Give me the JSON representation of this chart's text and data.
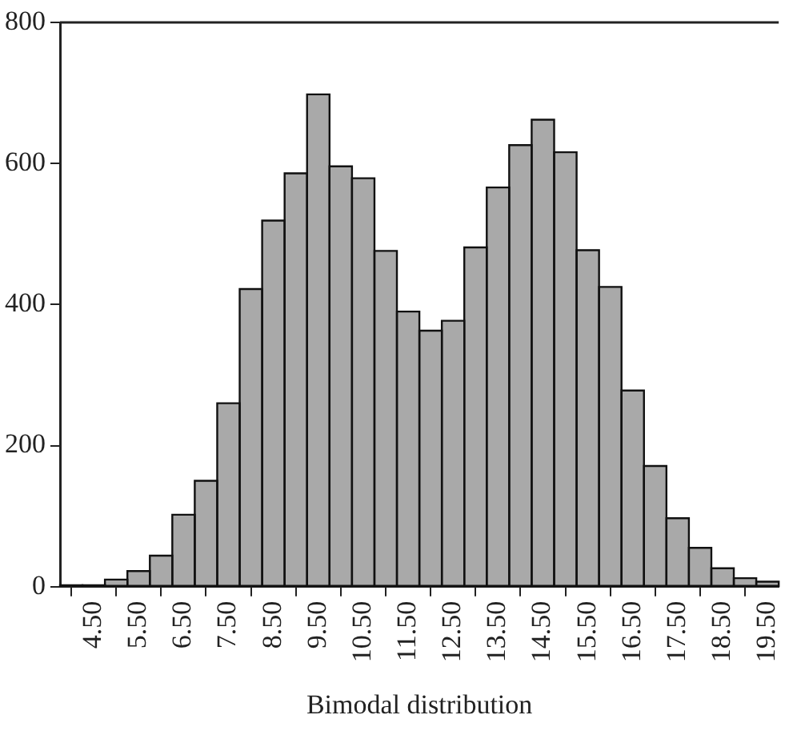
{
  "chart_data": {
    "type": "histogram",
    "xlabel": "Bimodal distribution",
    "bins": [
      3.75,
      4.25,
      4.75,
      5.25,
      5.75,
      6.25,
      6.75,
      7.25,
      7.75,
      8.25,
      8.75,
      9.25,
      9.75,
      10.25,
      10.75,
      11.25,
      11.75,
      12.25,
      12.75,
      13.25,
      13.75,
      14.25,
      14.75,
      15.25,
      15.75,
      16.25,
      16.75,
      17.25,
      17.75,
      18.25,
      18.75,
      19.25,
      19.75
    ],
    "values": [
      2,
      2,
      10,
      22,
      44,
      102,
      150,
      260,
      422,
      519,
      586,
      698,
      596,
      579,
      476,
      390,
      363,
      377,
      481,
      566,
      626,
      662,
      616,
      477,
      425,
      278,
      171,
      97,
      55,
      26,
      12,
      7
    ],
    "color": "#a9a9a9",
    "xlim": [
      3.75,
      19.75
    ],
    "xticks": [
      {
        "value": 4.5,
        "label": "4.50"
      },
      {
        "value": 5.5,
        "label": "5.50"
      },
      {
        "value": 6.5,
        "label": "6.50"
      },
      {
        "value": 7.5,
        "label": "7.50"
      },
      {
        "value": 8.5,
        "label": "8.50"
      },
      {
        "value": 9.5,
        "label": "9.50"
      },
      {
        "value": 10.5,
        "label": "10.50"
      },
      {
        "value": 11.5,
        "label": "11.50"
      },
      {
        "value": 12.5,
        "label": "12.50"
      },
      {
        "value": 13.5,
        "label": "13.50"
      },
      {
        "value": 14.5,
        "label": "14.50"
      },
      {
        "value": 15.5,
        "label": "15.50"
      },
      {
        "value": 16.5,
        "label": "16.50"
      },
      {
        "value": 17.5,
        "label": "17.50"
      },
      {
        "value": 18.5,
        "label": "18.50"
      },
      {
        "value": 19.5,
        "label": "19.50"
      }
    ],
    "ylim": [
      0,
      800
    ],
    "yticks": [
      0,
      200,
      400,
      600,
      800
    ],
    "grid": false,
    "legend": false
  }
}
